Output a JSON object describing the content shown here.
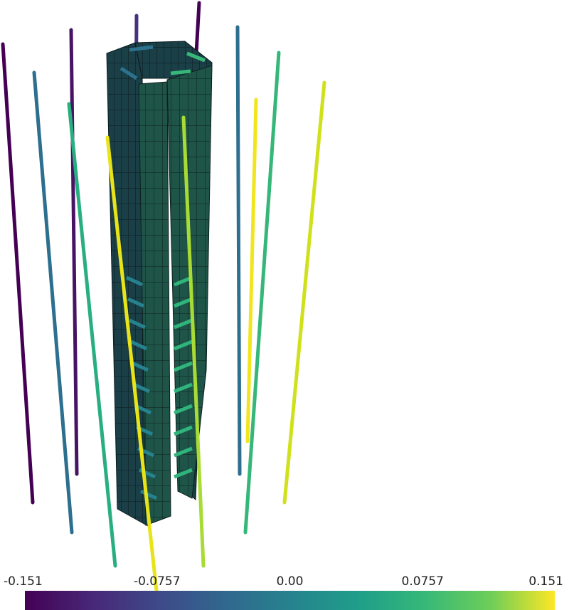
{
  "colorbar": {
    "lim": [
      -0.151,
      0.151
    ],
    "ticks": [
      -0.151,
      -0.0757,
      {
        "value": 0,
        "label": "0.00"
      },
      0.0757,
      0.151
    ]
  }
}
